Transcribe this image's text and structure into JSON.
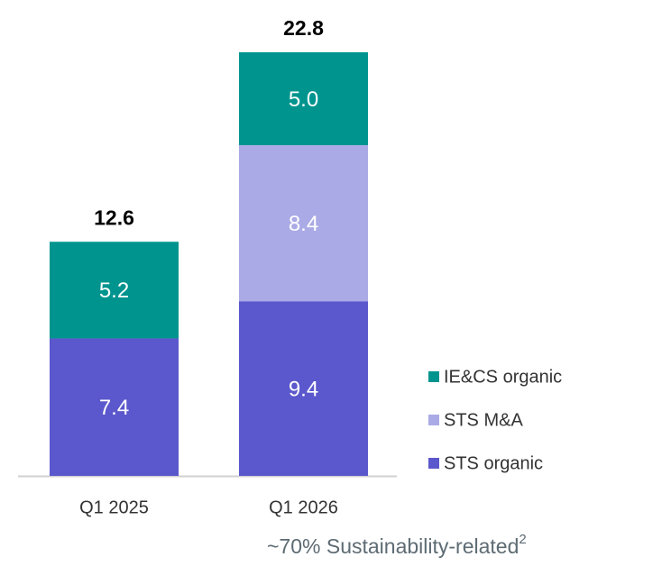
{
  "chart_data": {
    "type": "stacked_bar",
    "categories": [
      "Q1 2025",
      "Q1 2026"
    ],
    "series": [
      {
        "name": "STS organic",
        "color": "#5b57cc",
        "values": [
          7.4,
          9.4
        ]
      },
      {
        "name": "STS M&A",
        "color": "#aaaae6",
        "values": [
          null,
          8.4
        ]
      },
      {
        "name": "IE&CS organic",
        "color": "#00948f",
        "values": [
          5.2,
          5.0
        ],
        "value_labels": [
          "5.2",
          "5.0"
        ]
      }
    ],
    "totals": [
      12.6,
      22.8
    ],
    "annotation": "~70%  Sustainability-related",
    "annotation_footnote": "2"
  }
}
